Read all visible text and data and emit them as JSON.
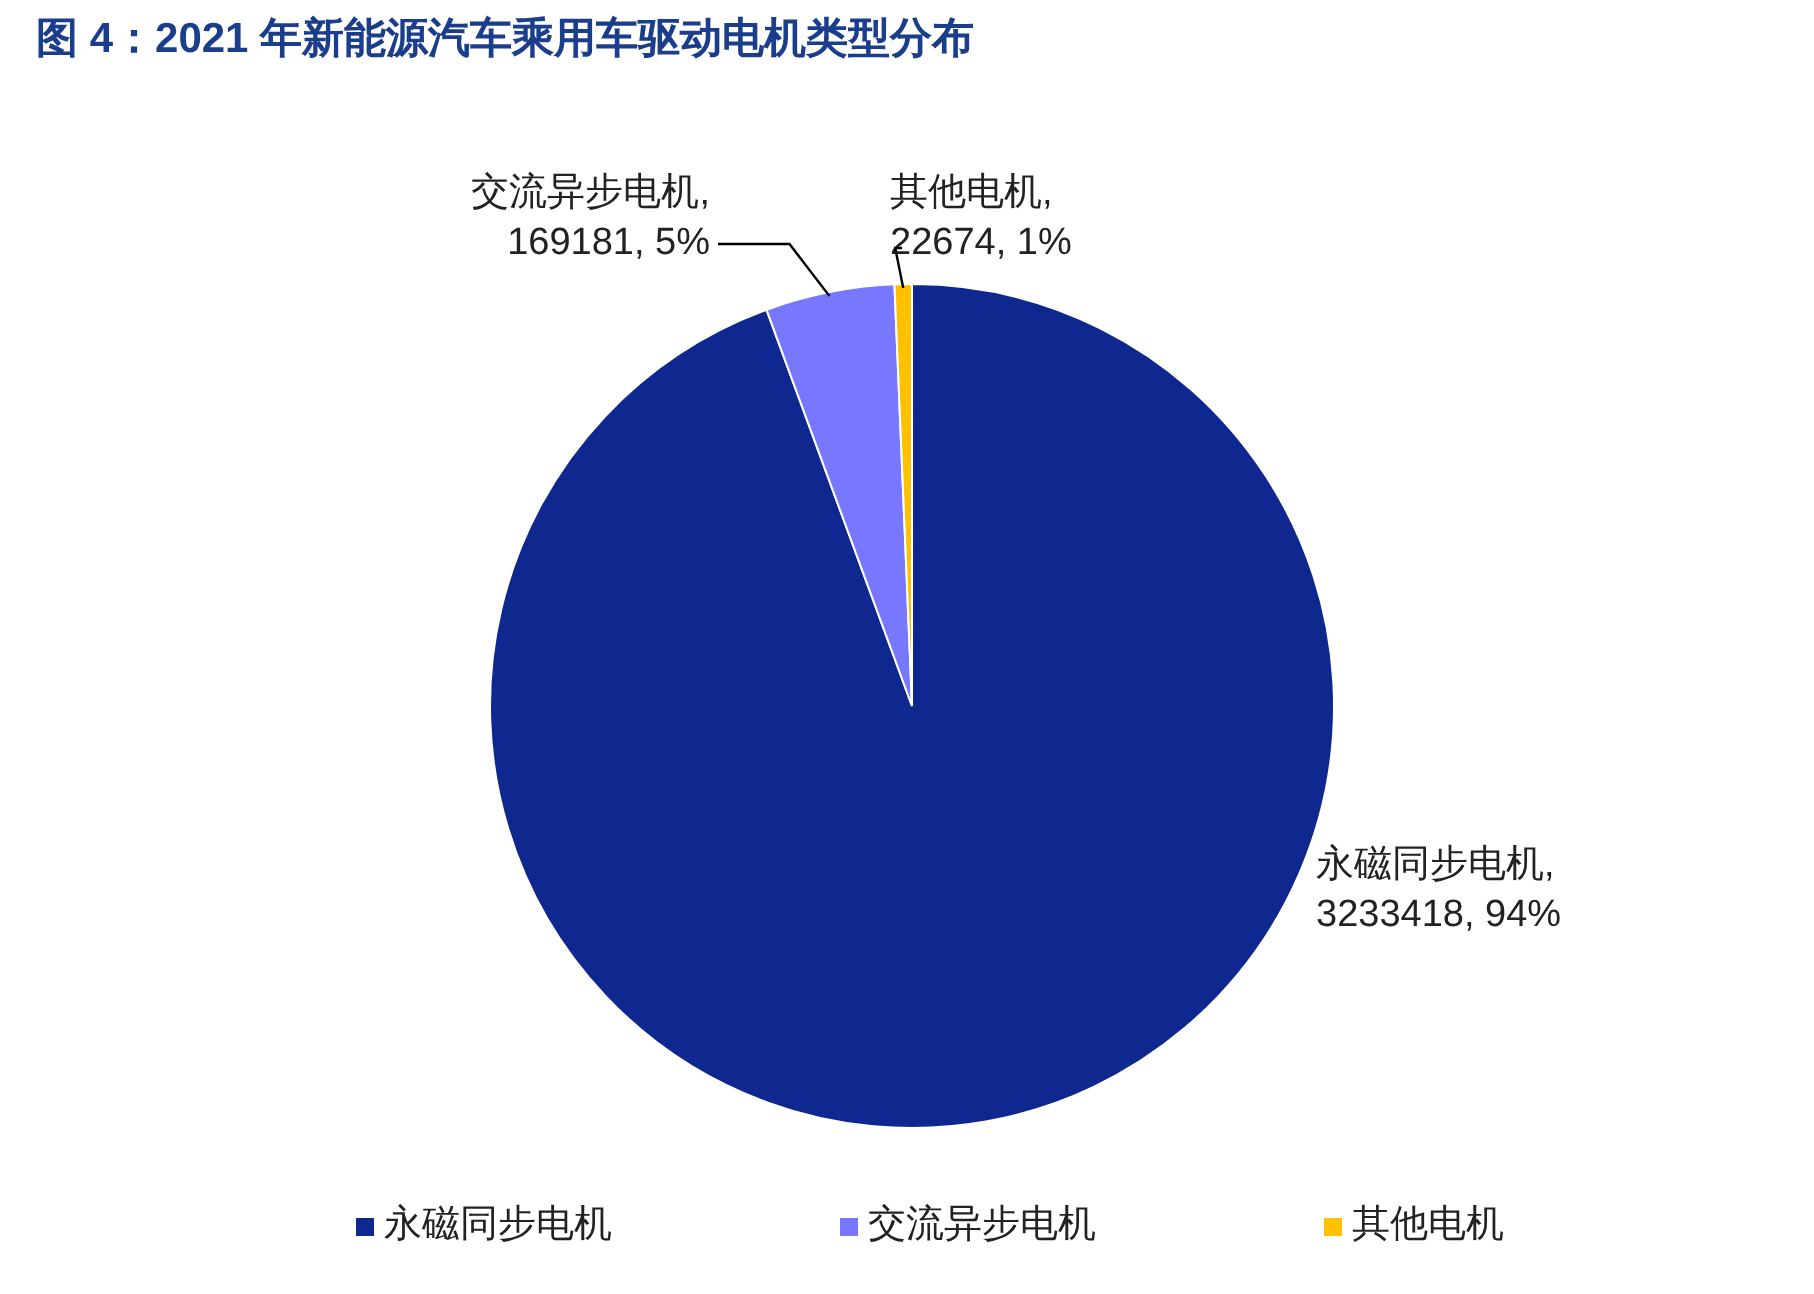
{
  "chart_data": {
    "type": "pie",
    "title": "图 4：2021 年新能源汽车乘用车驱动电机类型分布",
    "categories": [
      "永磁同步电机",
      "交流异步电机",
      "其他电机"
    ],
    "values": [
      3233418,
      169181,
      22674
    ],
    "value_labels": [
      "永磁同步电机, 3233418, 94%",
      "交流异步电机, 169181, 5%",
      "其他电机, 22674, 1%"
    ],
    "colors": [
      "#0f2890",
      "#7878ff",
      "#ffc000"
    ],
    "legend": "bottom"
  }
}
